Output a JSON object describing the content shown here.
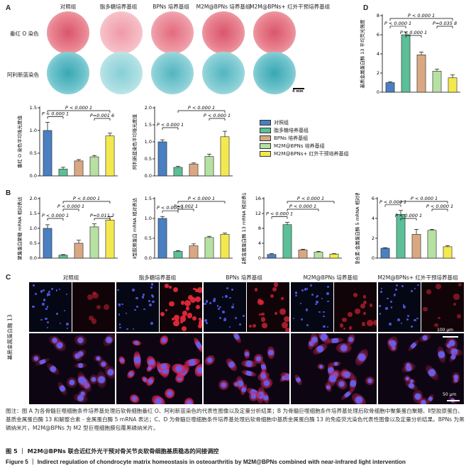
{
  "panel_labels": {
    "A": "A",
    "B": "B",
    "C": "C",
    "D": "D"
  },
  "groups": [
    "对照组",
    "脂多糖培养基组",
    "BPNs 培养基组",
    "M2M@BPNs 培养基组",
    "M2M@BPNs+ 红外干预培养基组"
  ],
  "panelA": {
    "row_labels": [
      "番红 O 染色",
      "阿利新蓝染色"
    ],
    "scale_bar": "4 mm"
  },
  "legend": [
    "对照组",
    "脂多糖培养基组",
    "BPNs 培养基组",
    "M2M@BPNs 培养基组",
    "M2M@BPNs+ 红外干预培养基组"
  ],
  "colors": {
    "c1": "#4a7fc1",
    "c2": "#5cbf97",
    "c3": "#d9a882",
    "c4": "#b7e0a3",
    "c5": "#f3e94f"
  },
  "panelC": {
    "ylabel": "基质金属蛋白酶 13",
    "scale_top": "100 μm",
    "scale_bottom": "50 μm"
  },
  "chart_data": [
    {
      "id": "A1",
      "type": "bar",
      "ylabel": "番红 O 染色平均吸光度值",
      "ylim": [
        0,
        1.5
      ],
      "yticks": [
        "0.0",
        "0.5",
        "1.0",
        "1.5"
      ],
      "values": [
        1.0,
        0.15,
        0.33,
        0.42,
        0.88
      ],
      "errors": [
        0.18,
        0.04,
        0.03,
        0.03,
        0.06
      ],
      "annotations": [
        {
          "from": 0,
          "to": 1,
          "text": "P < 0.000 1"
        },
        {
          "from": 0,
          "to": 4,
          "text": "P < 0.000 1"
        },
        {
          "from": 3,
          "to": 4,
          "text": "P=0.001 6"
        }
      ]
    },
    {
      "id": "A2",
      "type": "bar",
      "ylabel": "阿利新蓝染色平均吸光度值",
      "ylim": [
        0,
        2.0
      ],
      "yticks": [
        "0.0",
        "0.5",
        "1.0",
        "1.5",
        "2.0"
      ],
      "values": [
        1.0,
        0.25,
        0.35,
        0.57,
        1.15
      ],
      "errors": [
        0.06,
        0.03,
        0.03,
        0.07,
        0.16
      ],
      "annotations": [
        {
          "from": 0,
          "to": 1,
          "text": "P < 0.000 1"
        },
        {
          "from": 1,
          "to": 4,
          "text": "P < 0.000 1"
        },
        {
          "from": 3,
          "to": 4,
          "text": "P < 0.000 1"
        }
      ]
    },
    {
      "id": "B1",
      "type": "bar",
      "ylabel": "聚集蛋白聚糖 mRNA 相对表达",
      "ylim": [
        0,
        2.0
      ],
      "yticks": [
        "0.0",
        "0.5",
        "1.0",
        "1.5",
        "2.0"
      ],
      "values": [
        1.0,
        0.1,
        0.5,
        1.05,
        1.28
      ],
      "errors": [
        0.12,
        0.02,
        0.1,
        0.1,
        0.12
      ],
      "annotations": [
        {
          "from": 0,
          "to": 1,
          "text": "P < 0.000 1"
        },
        {
          "from": 1,
          "to": 4,
          "text": "P < 0.000 1"
        },
        {
          "from": 3,
          "to": 4,
          "text": "P=0.011 2"
        },
        {
          "from": 1,
          "to": 2,
          "text": "P < 0.000 1"
        }
      ]
    },
    {
      "id": "B2",
      "type": "bar",
      "ylabel": "Ⅱ型胶原蛋白 mRNA 相对表达",
      "ylim": [
        0,
        1.5
      ],
      "yticks": [
        "0.0",
        "0.5",
        "1.0",
        "1.5"
      ],
      "values": [
        1.0,
        0.17,
        0.31,
        0.52,
        0.6
      ],
      "errors": [
        0.05,
        0.02,
        0.05,
        0.03,
        0.03
      ],
      "annotations": [
        {
          "from": 0,
          "to": 1,
          "text": "P < 0.000 1"
        },
        {
          "from": 1,
          "to": 4,
          "text": "P < 0.000 1"
        },
        {
          "from": 1,
          "to": 2,
          "text": "P=0.002 1"
        }
      ]
    },
    {
      "id": "B3",
      "type": "bar",
      "ylabel": "基质金属蛋白酶 13 mRNA 相对表达",
      "ylim": [
        0,
        16
      ],
      "yticks": [
        "0",
        "4",
        "8",
        "12",
        "16"
      ],
      "values": [
        1.0,
        9.0,
        2.2,
        1.6,
        1.1
      ],
      "errors": [
        0.2,
        0.6,
        0.2,
        0.2,
        0.1
      ],
      "annotations": [
        {
          "from": 0,
          "to": 1,
          "text": "P < 0.000 1"
        },
        {
          "from": 1,
          "to": 3,
          "text": "P < 0.000 1"
        },
        {
          "from": 1,
          "to": 4,
          "text": "P < 0.000 1"
        }
      ]
    },
    {
      "id": "B4",
      "type": "bar",
      "ylabel": "解整合素-金属蛋白酶 5 mRNA 相对表达",
      "ylim": [
        0,
        6
      ],
      "yticks": [
        "0",
        "2",
        "4",
        "6"
      ],
      "values": [
        1.0,
        4.4,
        2.4,
        2.8,
        1.15
      ],
      "errors": [
        0.05,
        0.4,
        0.5,
        0.1,
        0.1
      ],
      "annotations": [
        {
          "from": 0,
          "to": 1,
          "text": "P < 0.000 1"
        },
        {
          "from": 1,
          "to": 4,
          "text": "P < 0.000 1"
        },
        {
          "from": 1,
          "to": 2,
          "text": "P < 0.000 1"
        },
        {
          "from": 3,
          "to": 4,
          "text": "P < 0.000 1"
        }
      ]
    },
    {
      "id": "D",
      "type": "bar",
      "ylabel": "基质金属蛋白酶 13 平均荧光强度",
      "ylim": [
        0,
        8
      ],
      "yticks": [
        "0",
        "2",
        "4",
        "6",
        "8"
      ],
      "values": [
        1.0,
        6.0,
        3.9,
        2.2,
        1.5
      ],
      "errors": [
        0.1,
        0.3,
        0.3,
        0.2,
        0.3
      ],
      "annotations": [
        {
          "from": 0,
          "to": 1,
          "text": "P < 0.000 1"
        },
        {
          "from": 0,
          "to": 4,
          "text": "P < 0.000 1"
        },
        {
          "from": 1,
          "to": 2,
          "text": "P < 0.000 1"
        },
        {
          "from": 3,
          "to": 4,
          "text": "P=0.035 8"
        }
      ]
    }
  ],
  "caption": {
    "note": "图注：图 A 为各骨髓巨噬细胞条件培养基处理后软骨细胞番红 O、阿利新蓝染色的代表性图像以及定量分析结果；B 为骨髓巨噬细胞条件培养基处理后软骨细胞中聚集蛋白聚糖、Ⅱ型胶原蛋白、基质金属蛋白酶 13 和解整合素 - 金属蛋白酶 5 mRNA 表达；C、D 为骨髓巨噬细胞条件培养基处理后软骨细胞中基质金属蛋白酶 13 的免疫荧光染色代表性图像以及定量分析结果。BPNs 为黑磷纳米片，M2M@BPNs 为 M2 型巨噬细胞膜包覆黑磷纳米片。",
    "fig_cn": "图 5 ｜ M2M@BPNs 联合近红外光干预对骨关节炎软骨细胞基质稳态的间接调控",
    "fig_en": "Figure 5 ｜ Indirect regulation of chondrocyte matrix homeostasis in osteoarthritis by M2M@BPNs combined with near-infrared light intervention"
  }
}
